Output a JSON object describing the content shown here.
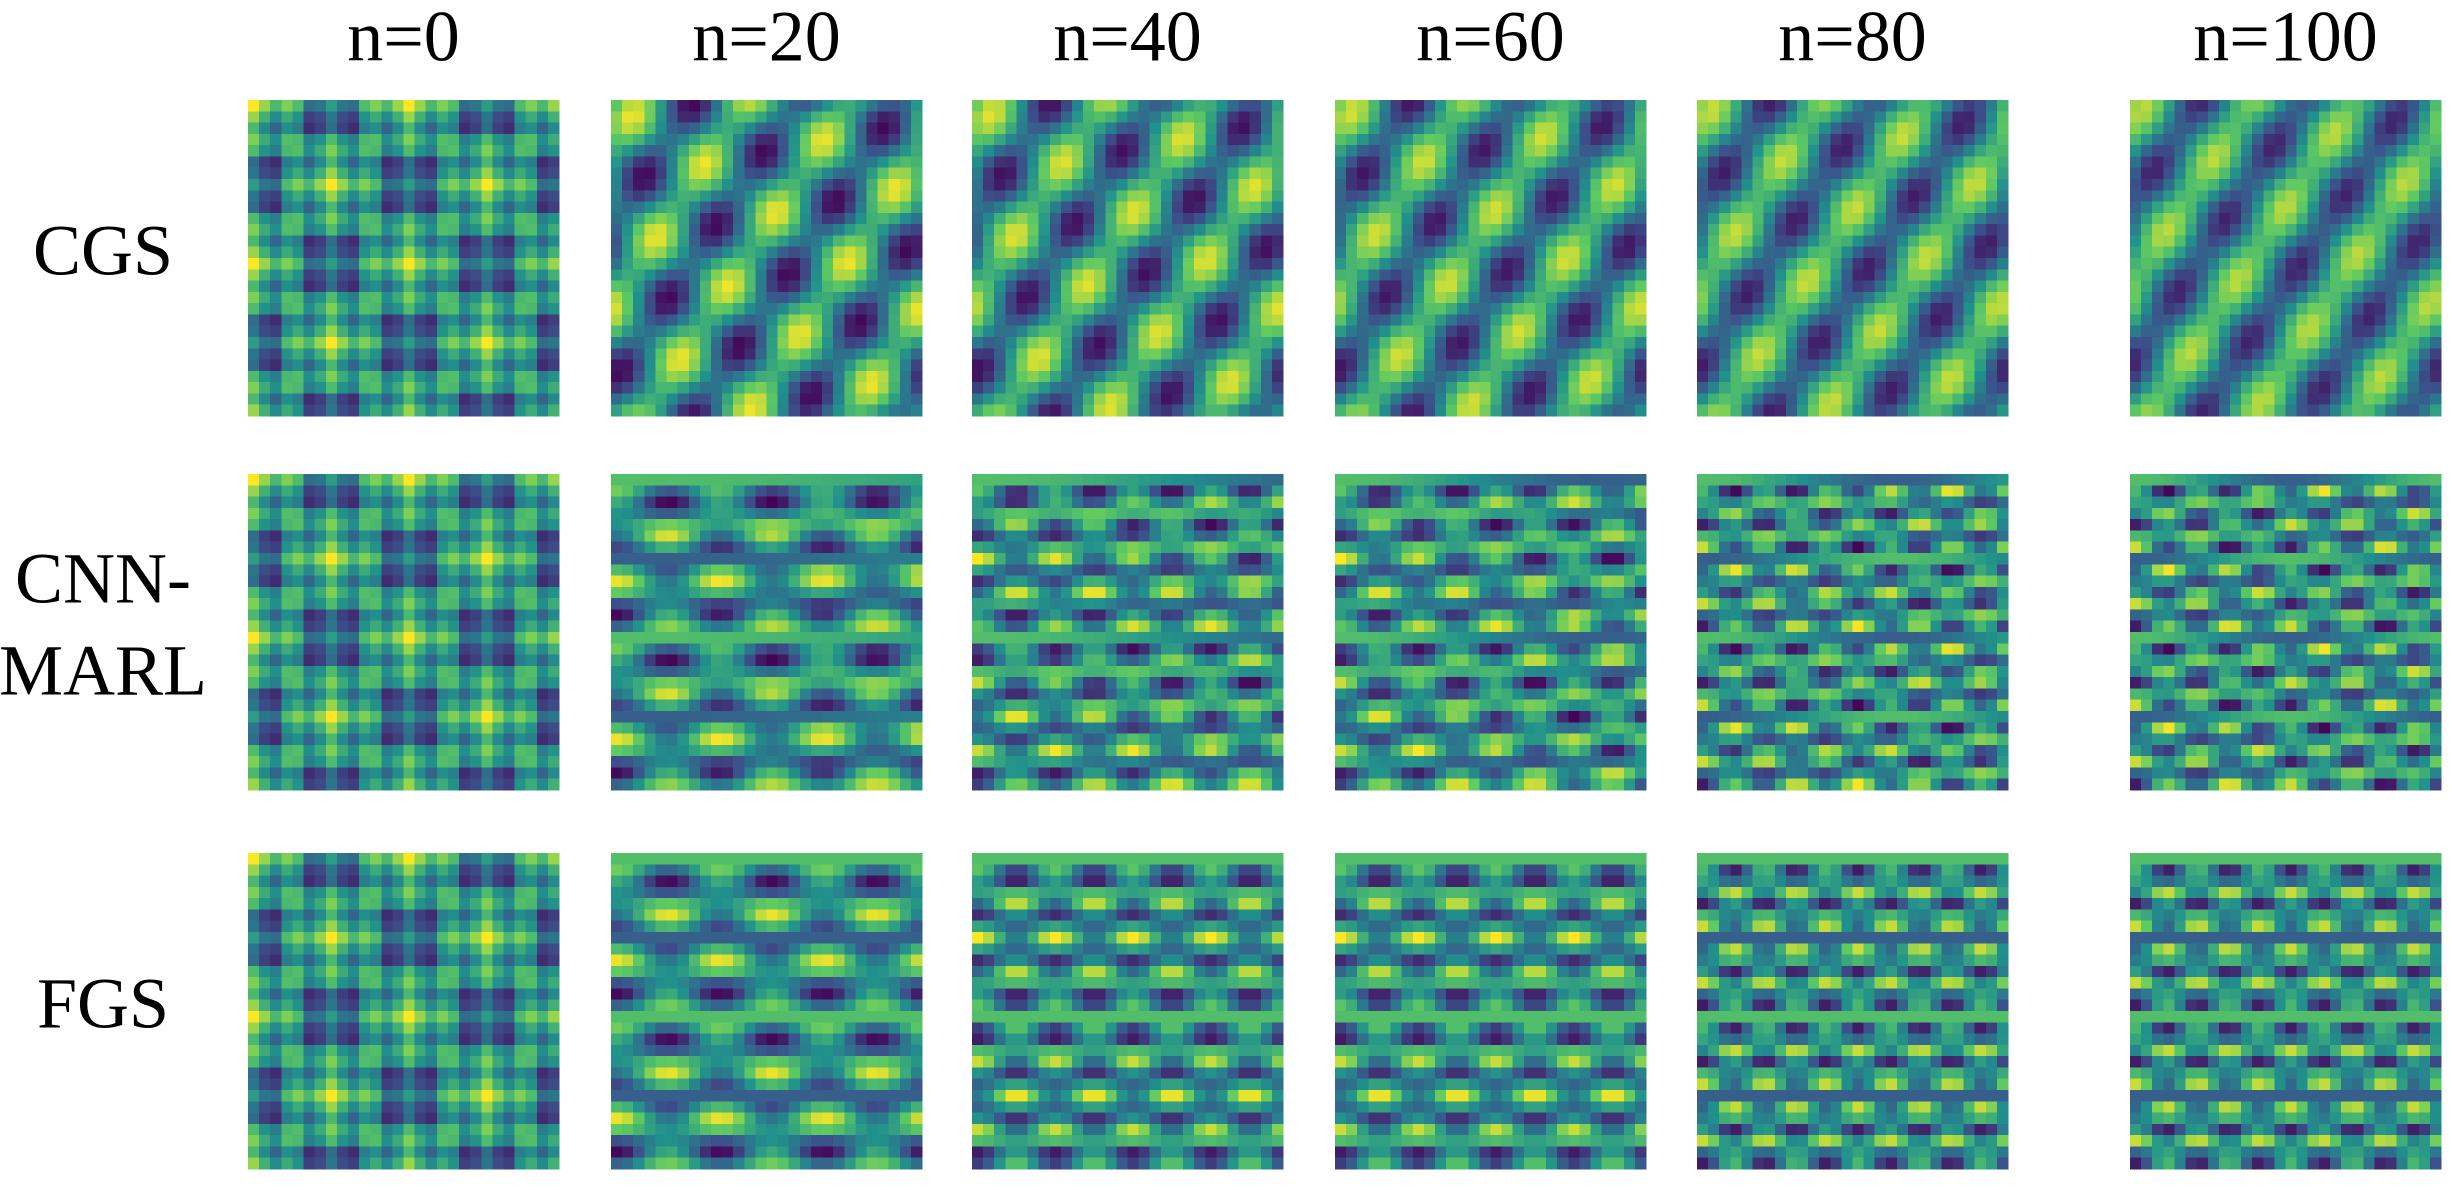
{
  "columns": [
    "n=0",
    "n=20",
    "n=40",
    "n=60",
    "n=80",
    "n=100"
  ],
  "rows": [
    [
      "CGS"
    ],
    [
      "CNN-",
      "MARL"
    ],
    [
      "FGS"
    ]
  ]
}
